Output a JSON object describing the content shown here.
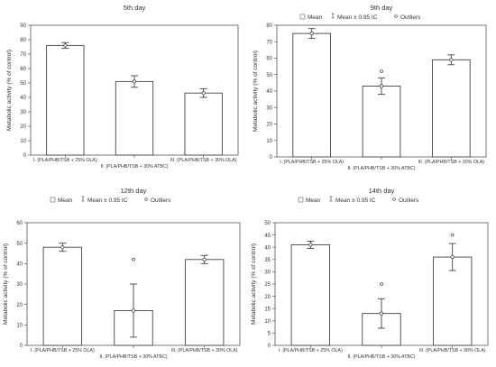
{
  "chart_data": [
    {
      "type": "bar",
      "title": "5th day",
      "ylabel": "Metabolic activity (% of control)",
      "ylim": [
        0,
        90
      ],
      "yticks": [
        0,
        10,
        20,
        30,
        40,
        50,
        60,
        70,
        80,
        90
      ],
      "grid": false,
      "legend": {
        "mean": "",
        "ci": "",
        "outliers": ""
      },
      "categories": [
        "I. (PLA/PHB/TSB + 25% OLA)",
        "II. (PLA/PHB/TSB + 30% ATBC)",
        "III. (PLA/PHB/TSB + 30% OLA)"
      ],
      "values": [
        76,
        51,
        43
      ],
      "ci_low": [
        74,
        47,
        40
      ],
      "ci_high": [
        78,
        55,
        46
      ],
      "outliers": []
    },
    {
      "type": "bar",
      "title": "9th day",
      "ylabel": "Metabolic activity (% of control)",
      "ylim": [
        0,
        80
      ],
      "yticks": [
        0,
        10,
        20,
        30,
        40,
        50,
        60,
        70,
        80
      ],
      "grid": false,
      "legend": {
        "mean": "Mean",
        "ci": "Mean ± 0.95 IC",
        "outliers": "Outliers"
      },
      "categories": [
        "I. (PLA/PHB/TSB + 25% OLA)",
        "II. (PLA/PHB/TSB + 30% ATBC)",
        "III. (PLA/PHB/TSB + 30% OLA)"
      ],
      "values": [
        75,
        43,
        59
      ],
      "ci_low": [
        72,
        38,
        56
      ],
      "ci_high": [
        78,
        48,
        62
      ],
      "outliers": [
        {
          "category": 1,
          "value": 52
        }
      ]
    },
    {
      "type": "bar",
      "title": "12th day",
      "ylabel": "Metabolic activity (% of control)",
      "ylim": [
        0,
        60
      ],
      "yticks": [
        0,
        10,
        20,
        30,
        40,
        50,
        60
      ],
      "grid": false,
      "legend": {
        "mean": "Mean",
        "ci": "Mean ± 0.95 IC",
        "outliers": "Outliers"
      },
      "categories": [
        "I. (PLA/PHB/TSB + 25% OLA)",
        "II. (PLA/PHB/TSB + 30% ATBC)",
        "III. (PLA/PHB/TSB + 30% OLA)"
      ],
      "values": [
        48,
        17,
        42
      ],
      "ci_low": [
        46,
        4,
        40
      ],
      "ci_high": [
        50,
        30,
        44
      ],
      "outliers": [
        {
          "category": 1,
          "value": 42
        }
      ]
    },
    {
      "type": "bar",
      "title": "14th day",
      "ylabel": "Metabolic activity (% of control)",
      "ylim": [
        0,
        50
      ],
      "yticks": [
        0,
        5,
        10,
        15,
        20,
        25,
        30,
        35,
        40,
        45,
        50
      ],
      "grid": false,
      "legend": {
        "mean": "Mean",
        "ci": "Mean ± 0.95 IC",
        "outliers": "Outliers"
      },
      "categories": [
        "I. (PLA/PHB/TSB + 25% OLA)",
        "II. (PLA/PHB/TSB + 30% ATBC)",
        "III. (PLA/PHB/TSB + 30% OLA)"
      ],
      "values": [
        41,
        13,
        36
      ],
      "ci_low": [
        39.5,
        7,
        30.5
      ],
      "ci_high": [
        42.5,
        19,
        41.5
      ],
      "outliers": [
        {
          "category": 1,
          "value": 25
        },
        {
          "category": 2,
          "value": 45
        }
      ]
    }
  ]
}
